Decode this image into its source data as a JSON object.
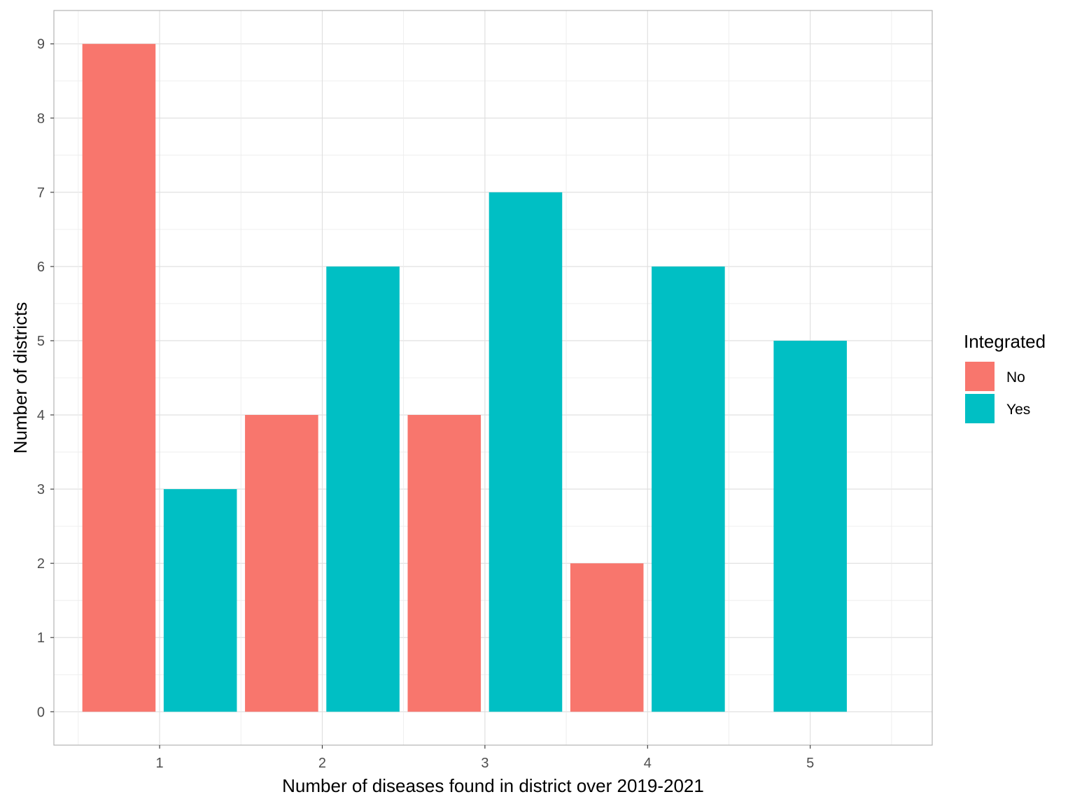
{
  "chart_data": {
    "type": "bar",
    "xlabel": "Number of diseases found in district over 2019-2021",
    "ylabel": "Number of districts",
    "categories": [
      "1",
      "2",
      "3",
      "4",
      "5"
    ],
    "ylim": [
      -0.45,
      9.45
    ],
    "yticks": [
      "0",
      "1",
      "2",
      "3",
      "4",
      "5",
      "6",
      "7",
      "8",
      "9"
    ],
    "grid": true,
    "legend": {
      "title": "Integrated",
      "position": "right",
      "items": [
        "No",
        "Yes"
      ]
    },
    "series": [
      {
        "name": "No",
        "color": "#F8766D",
        "values": [
          9,
          4,
          4,
          2,
          null
        ]
      },
      {
        "name": "Yes",
        "color": "#00BFC4",
        "values": [
          3,
          6,
          7,
          6,
          5
        ]
      }
    ]
  }
}
